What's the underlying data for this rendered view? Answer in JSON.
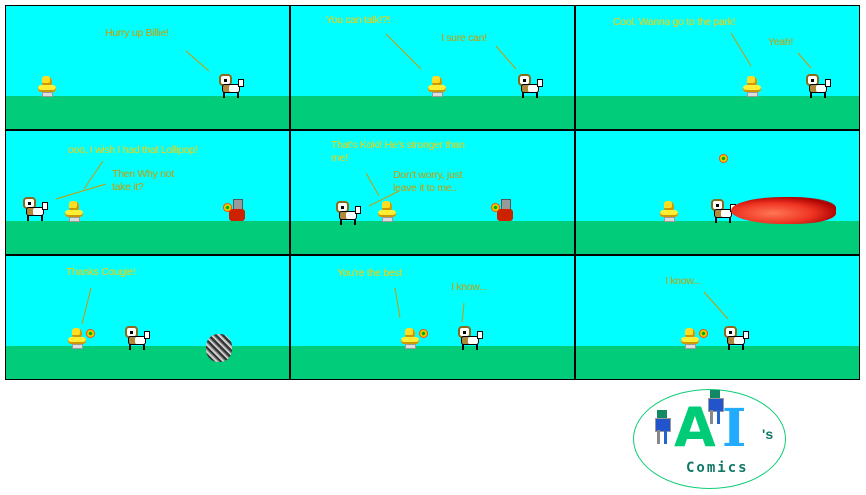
{
  "panels": [
    {
      "dialogue": [
        "Hurry up Billie!"
      ]
    },
    {
      "dialogue": [
        "You can talk!?!",
        "I sure can!"
      ]
    },
    {
      "dialogue": [
        "Cool. Wanna go to the park!",
        "Yeah!"
      ]
    },
    {
      "dialogue": [
        "ooo, I wish I had that Lollipop!",
        "Then Why not",
        "take it?"
      ]
    },
    {
      "dialogue": [
        "That's Koki! He's stronger than",
        "me!",
        "Don't worry, just",
        "leave it to me.."
      ]
    },
    {
      "dialogue": []
    },
    {
      "dialogue": [
        "Thanks Cougie!"
      ]
    },
    {
      "dialogue": [
        "You're the best",
        "I know..."
      ]
    },
    {
      "dialogue": [
        "I know..."
      ]
    }
  ],
  "logo": {
    "letter_a": "A",
    "letter_i": "I",
    "possessive": "'s",
    "word": "Comics"
  },
  "colors": {
    "sky": "#00ffff",
    "ground": "#00cc7a",
    "speech_yellow": "#ffcc00",
    "speech_orange": "#cc9900"
  }
}
